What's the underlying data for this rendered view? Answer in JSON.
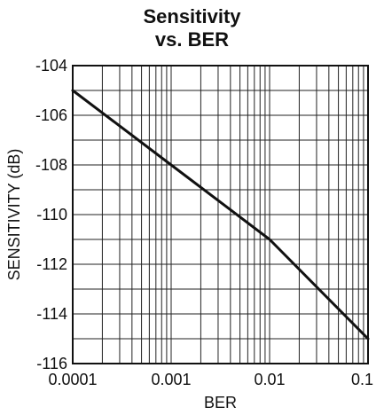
{
  "chart_data": {
    "type": "line",
    "title_lines": [
      "Sensitivity",
      "vs. BER"
    ],
    "xlabel": "BER",
    "ylabel": "SENSITIVITY (dB)",
    "x_scale": "log",
    "xlim": [
      0.0001,
      0.1
    ],
    "ylim": [
      -116,
      -104
    ],
    "x_tick_labels": [
      "0.0001",
      "0.001",
      "0.01",
      "0.1"
    ],
    "y_tick_labels": [
      "-104",
      "-106",
      "-108",
      "-110",
      "-112",
      "-114",
      "-116"
    ],
    "grid": true,
    "series": [
      {
        "color": "#111111",
        "points": [
          {
            "x": 0.0001,
            "y": -105
          },
          {
            "x": 0.001,
            "y": -108
          },
          {
            "x": 0.01,
            "y": -111
          },
          {
            "x": 0.1,
            "y": -115
          }
        ]
      }
    ]
  }
}
